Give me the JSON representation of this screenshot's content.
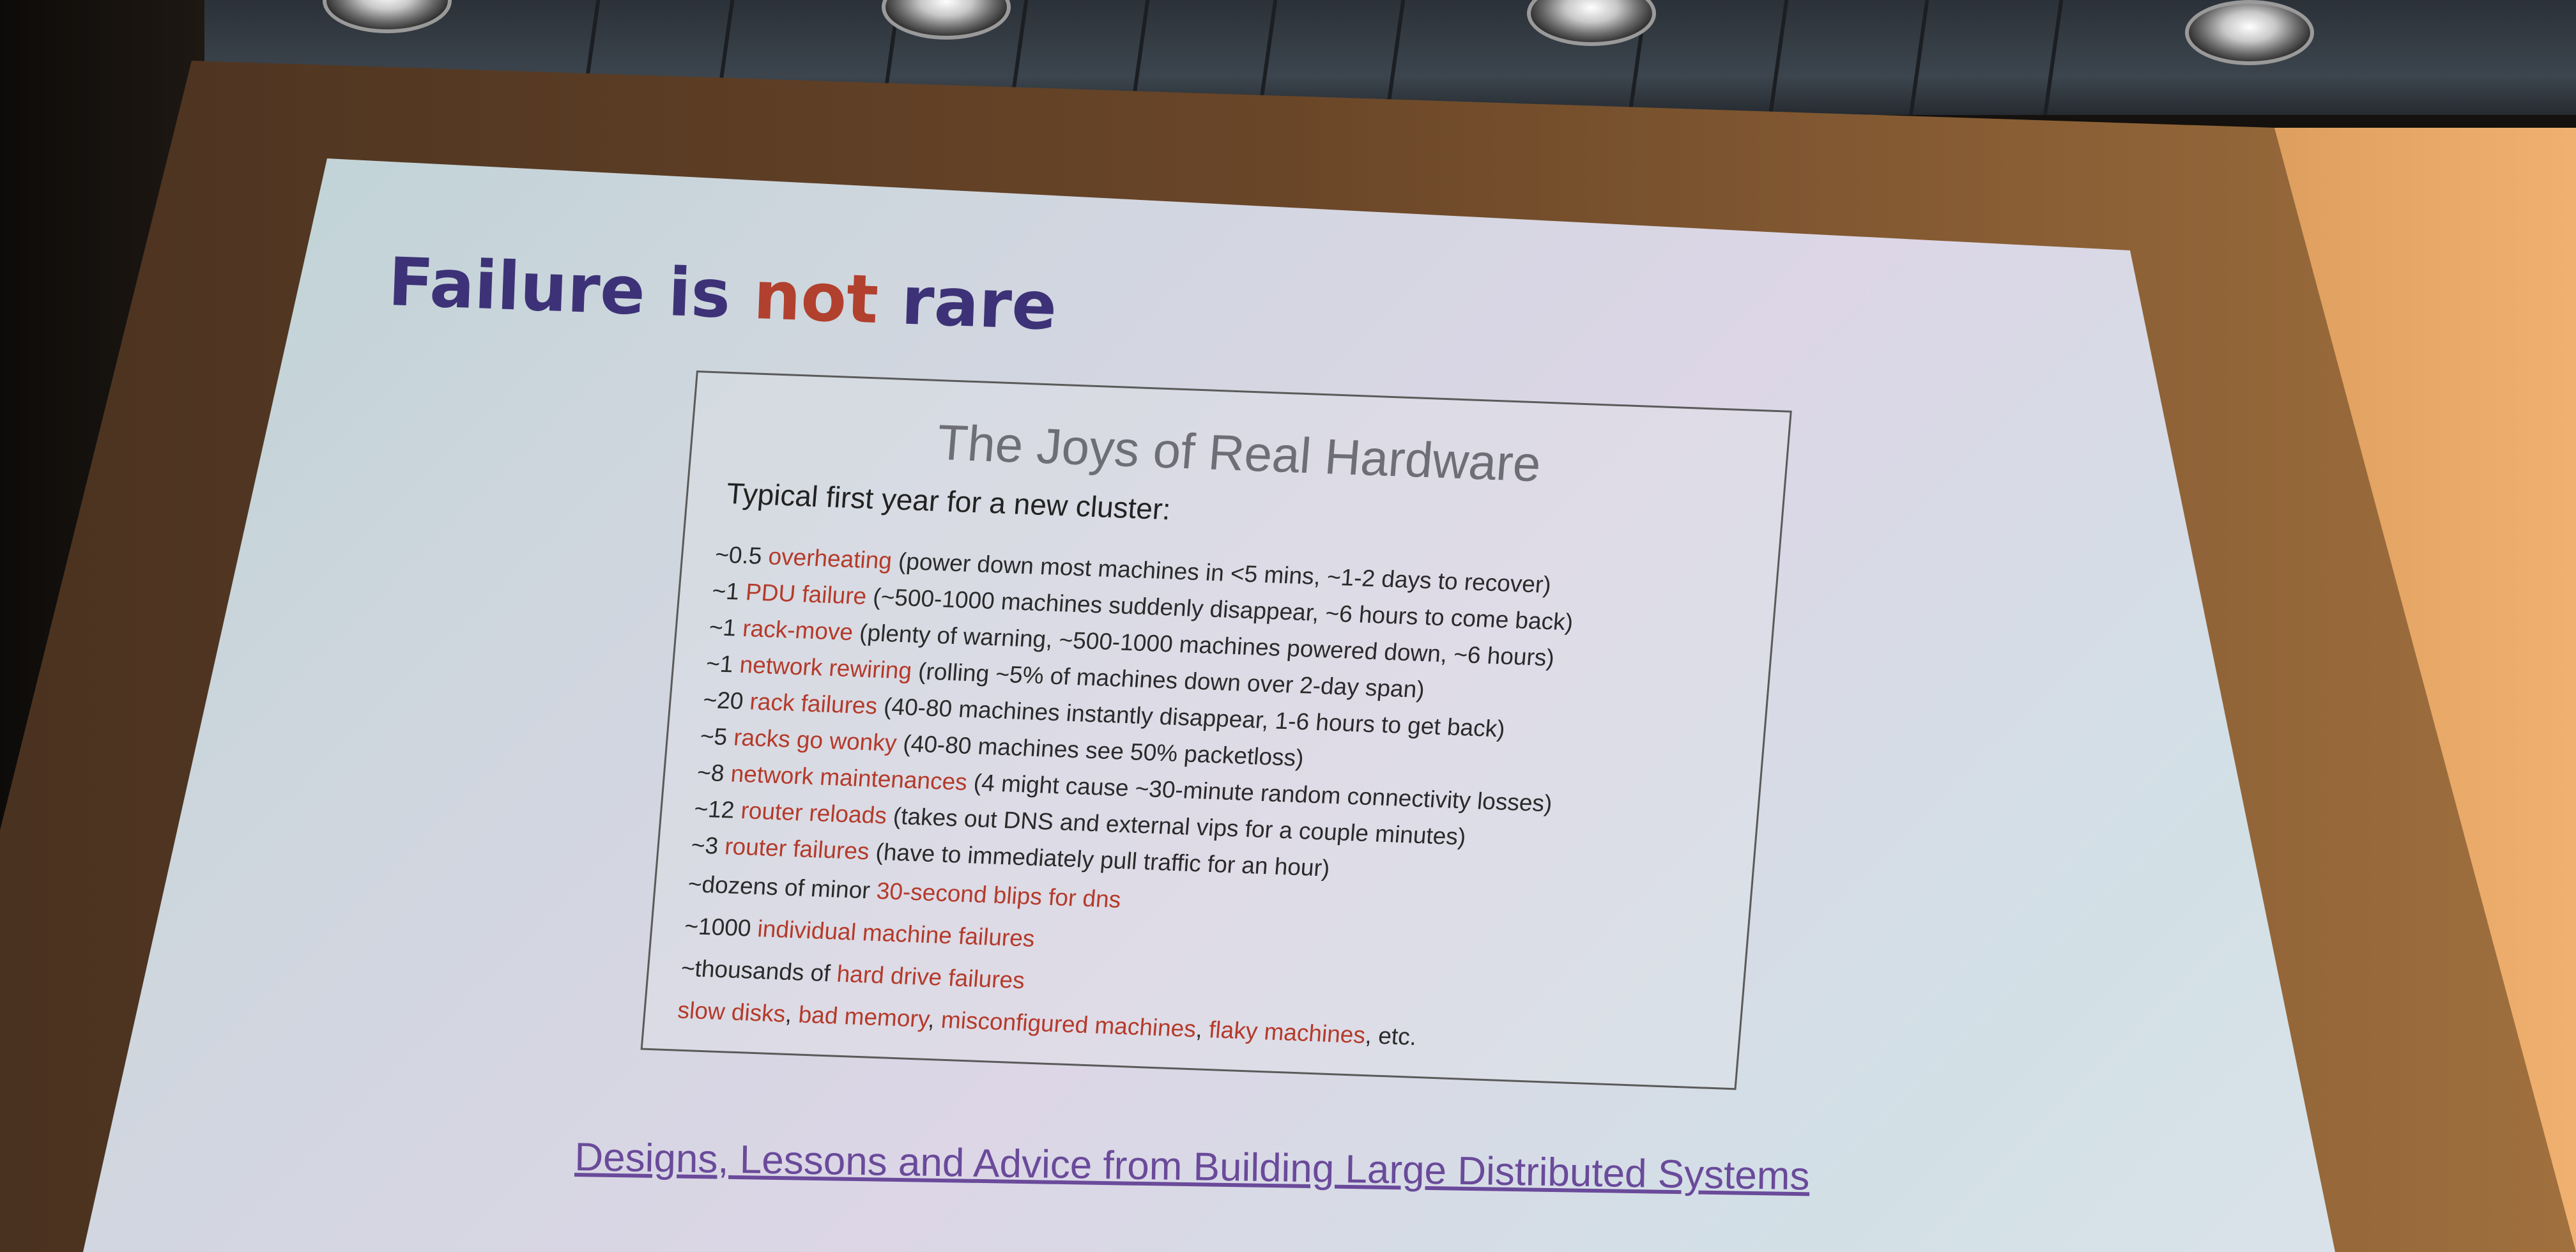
{
  "slide": {
    "title_part1": "Failure is ",
    "title_accent": "not",
    "title_part2": " rare",
    "figure": {
      "title": "The Joys of Real Hardware",
      "subtitle": "Typical first year for a new cluster:",
      "items": [
        {
          "count": "~0.5 ",
          "event": "overheating",
          "detail": " (power down most machines in <5 mins, ~1-2 days to recover)"
        },
        {
          "count": "~1 ",
          "event": "PDU failure",
          "detail": " (~500-1000 machines suddenly disappear, ~6 hours to come back)"
        },
        {
          "count": "~1 ",
          "event": "rack-move",
          "detail": " (plenty of warning, ~500-1000 machines powered down, ~6 hours)"
        },
        {
          "count": "~1 ",
          "event": "network rewiring",
          "detail": " (rolling ~5% of machines down over 2-day span)"
        },
        {
          "count": "~20 ",
          "event": "rack failures",
          "detail": " (40-80 machines instantly disappear, 1-6 hours to get back)"
        },
        {
          "count": "~5 ",
          "event": "racks go wonky",
          "detail": " (40-80 machines see 50% packetloss)"
        },
        {
          "count": "~8 ",
          "event": "network maintenances",
          "detail": " (4 might cause ~30-minute random connectivity losses)"
        },
        {
          "count": "~12 ",
          "event": "router reloads",
          "detail": " (takes out DNS and external vips for a couple minutes)"
        },
        {
          "count": "~3 ",
          "event": "router failures",
          "detail": " (have to immediately pull traffic for an hour)"
        },
        {
          "count": "~dozens of minor ",
          "event": "30-second blips for dns",
          "detail": ""
        },
        {
          "count": "~1000 ",
          "event": "individual machine failures",
          "detail": ""
        },
        {
          "count": "~thousands of ",
          "event": "hard drive failures",
          "detail": ""
        }
      ],
      "last_line": {
        "item1": "slow disks",
        "item2": "bad memory",
        "item3": "misconfigured machines",
        "item4": "flaky machines",
        "tail": ", etc."
      }
    },
    "link_text": "Designs, Lessons and Advice from Building Large Distributed Systems"
  },
  "colors": {
    "title": "#3d3277",
    "accent": "#b1402e",
    "event_red": "#b43a2a",
    "link": "#6a4a9a"
  },
  "icons": [
    "ceiling-light-icon"
  ]
}
